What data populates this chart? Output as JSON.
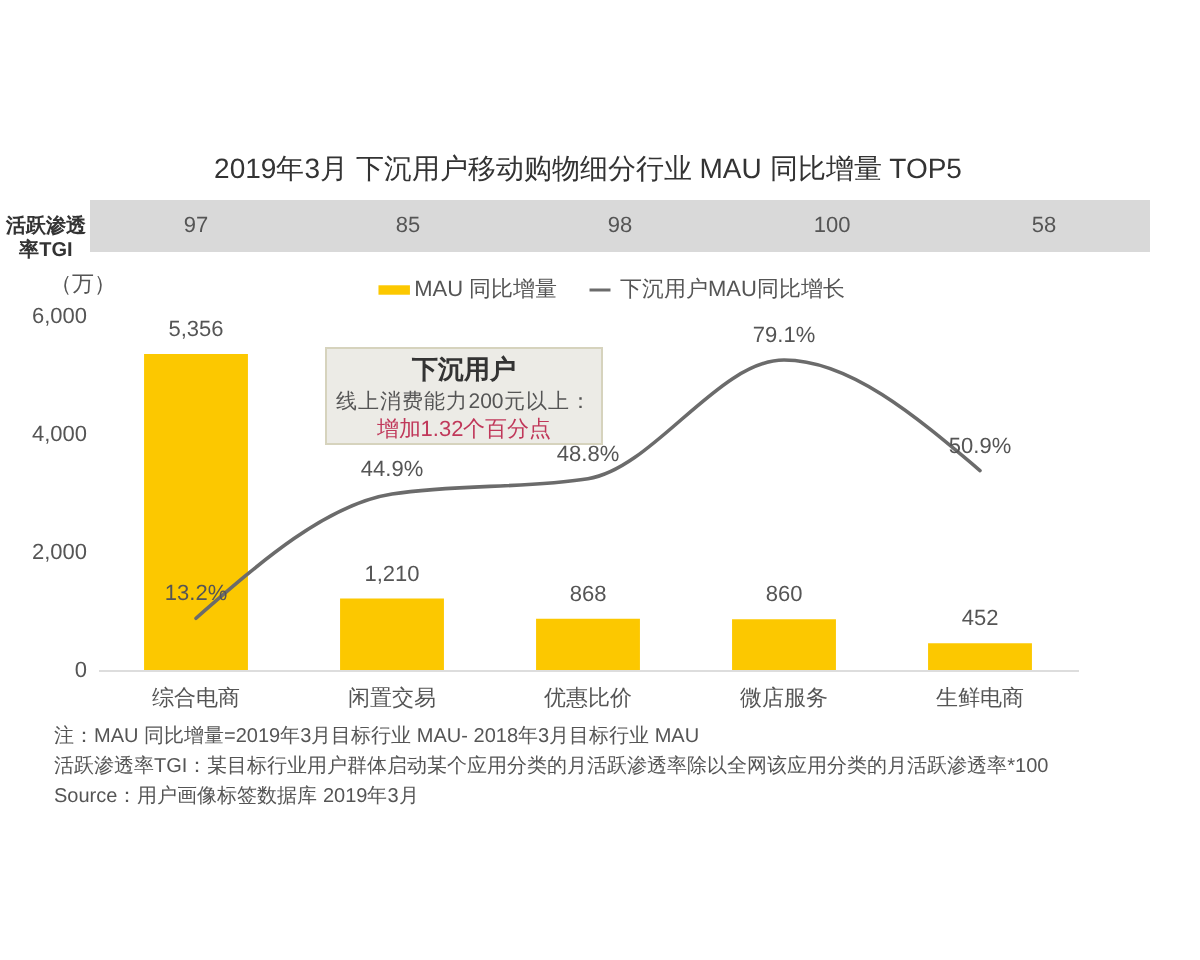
{
  "chart_data": {
    "type": "bar",
    "title": "2019年3月 下沉用户移动购物细分行业 MAU 同比增量 TOP5",
    "ylabel": "（万）",
    "categories": [
      "综合电商",
      "闲置交易",
      "优惠比价",
      "微店服务",
      "生鲜电商"
    ],
    "series": [
      {
        "name": "MAU 同比增量",
        "color": "#fcc800",
        "values": [
          5356,
          1210,
          868,
          860,
          452
        ],
        "value_labels": [
          "5,356",
          "1,210",
          "868",
          "860",
          "452"
        ]
      },
      {
        "name": "下沉用户MAU同比增长",
        "type": "line",
        "axis": "y2",
        "color": "#6b6b6b",
        "values": [
          13.2,
          44.9,
          48.8,
          79.1,
          50.9
        ],
        "value_labels": [
          "13.2%",
          "44.9%",
          "48.8%",
          "79.1%",
          "50.9%"
        ]
      }
    ],
    "ylim": [
      0,
      6000
    ],
    "yticks": [
      0,
      {
        "value": 2000,
        "label": "2,000"
      },
      {
        "value": 4000,
        "label": "4,000"
      },
      {
        "value": 6000,
        "label": "6,000"
      }
    ],
    "legend": "top",
    "grid": false,
    "annotations": [
      "活跃渗透率TGI",
      "97",
      "85",
      "98",
      "100",
      "58",
      "下沉用户",
      "线上消费能力200元以上：",
      "增加1.32个百分点",
      "注：MAU 同比增量=2019年3月目标行业 MAU- 2018年3月目标行业 MAU",
      "活跃渗透率TGI：某目标行业用户群体启动某个应用分类的月活跃渗透率除以全网该应用分类的月活跃渗透率*100",
      "Source：用户画像标签数据库 2019年3月"
    ]
  }
}
